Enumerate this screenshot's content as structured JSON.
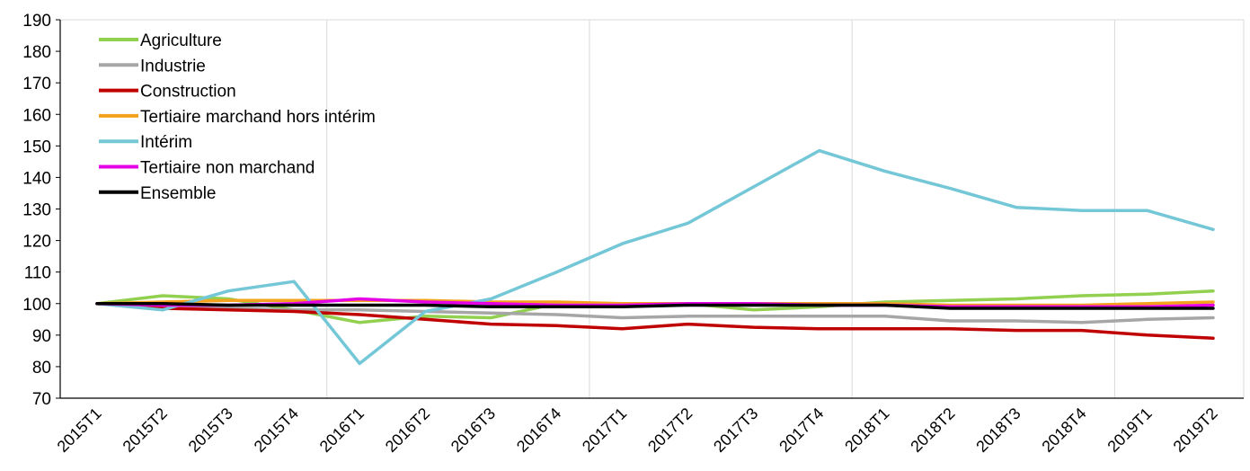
{
  "chart_data": {
    "type": "line",
    "title": "",
    "xlabel": "",
    "ylabel": "",
    "ylim": [
      70,
      190
    ],
    "yticks": [
      70,
      80,
      90,
      100,
      110,
      120,
      130,
      140,
      150,
      160,
      170,
      180,
      190
    ],
    "grid": "vertical gridlines every 4 quarters (T1)",
    "legend_position": "top-left",
    "categories": [
      "2015T1",
      "2015T2",
      "2015T3",
      "2015T4",
      "2016T1",
      "2016T2",
      "2016T3",
      "2016T4",
      "2017T1",
      "2017T2",
      "2017T3",
      "2017T4",
      "2018T1",
      "2018T2",
      "2018T3",
      "2018T4",
      "2019T1",
      "2019T2"
    ],
    "series": [
      {
        "name": "Agriculture",
        "color": "#92d050",
        "values": [
          100,
          102.5,
          101.5,
          98,
          94,
          96,
          95.5,
          100,
          99.5,
          100,
          98,
          99,
          100.5,
          101,
          101.5,
          102.5,
          103,
          104
        ]
      },
      {
        "name": "Industrie",
        "color": "#a6a6a6",
        "values": [
          100,
          99,
          98.5,
          98,
          98,
          97.5,
          97,
          96.5,
          95.5,
          96,
          96,
          96,
          96,
          94.5,
          94.5,
          94,
          95,
          95.5
        ]
      },
      {
        "name": "Construction",
        "color": "#c00000",
        "values": [
          100,
          98.5,
          98,
          97.5,
          96.5,
          95,
          93.5,
          93,
          92,
          93.5,
          92.5,
          92,
          92,
          92,
          91.5,
          91.5,
          90,
          89
        ]
      },
      {
        "name": "Tertiaire marchand hors intérim",
        "color": "#f4a21d",
        "values": [
          100,
          100.5,
          101,
          101,
          101,
          101,
          100.5,
          100.5,
          100,
          100,
          100,
          100,
          100,
          99.5,
          99.5,
          99.5,
          100,
          100.5
        ]
      },
      {
        "name": "Intérim",
        "color": "#73c7d6",
        "values": [
          100,
          98,
          104,
          107,
          81,
          97.5,
          101.5,
          110,
          119,
          125.5,
          137,
          148.5,
          142,
          136.5,
          130.5,
          129.5,
          129.5,
          123.5
        ]
      },
      {
        "name": "Tertiaire non marchand",
        "color": "#e600e6",
        "values": [
          100,
          99.5,
          99.5,
          100,
          101.5,
          100.5,
          100,
          99.5,
          99.5,
          100,
          100,
          99.5,
          99.5,
          99,
          99,
          99,
          99,
          99.5
        ]
      },
      {
        "name": "Ensemble",
        "color": "#000000",
        "values": [
          100,
          100,
          99.5,
          99.5,
          99.5,
          99.5,
          99,
          99,
          99,
          99.5,
          99.5,
          99.5,
          99.5,
          98.5,
          98.5,
          98.5,
          98.5,
          98.5
        ]
      }
    ]
  }
}
